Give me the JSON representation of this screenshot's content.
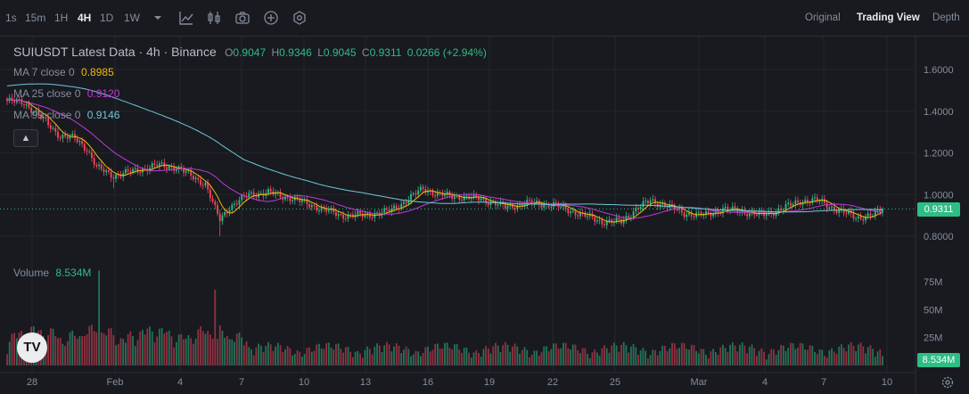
{
  "toolbar": {
    "timeframes": [
      "1s",
      "15m",
      "1H",
      "4H",
      "1D",
      "1W"
    ],
    "active_timeframe": "4H",
    "views": [
      "Original",
      "Trading View",
      "Depth"
    ],
    "active_view": "Trading View"
  },
  "legend": {
    "title": "SUIUSDT Latest Data · 4h · Binance",
    "o_label": "O",
    "o": "0.9047",
    "h_label": "H",
    "h": "0.9346",
    "l_label": "L",
    "l": "0.9045",
    "c_label": "C",
    "c": "0.9311",
    "change": "0.0266 (+2.94%)",
    "ma7_label": "MA 7 close 0",
    "ma7": "0.8985",
    "ma25_label": "MA 25 close 0",
    "ma25": "0.9120",
    "ma99_label": "MA 99 close 0",
    "ma99": "0.9146",
    "volume_label": "Volume",
    "volume": "8.534M"
  },
  "price_axis": {
    "ticks": [
      "1.6000",
      "1.4000",
      "1.2000",
      "1.0000",
      "0.8000"
    ],
    "current_price": "0.9311"
  },
  "volume_axis": {
    "ticks": [
      "75M",
      "50M",
      "25M"
    ],
    "current_volume": "8.534M"
  },
  "time_axis": {
    "labels": [
      "28",
      "Feb",
      "4",
      "7",
      "10",
      "13",
      "16",
      "19",
      "22",
      "25",
      "Mar",
      "4",
      "7",
      "10"
    ]
  },
  "colors": {
    "background": "#181a20",
    "up": "#2ebd85",
    "down": "#f6465d",
    "ma7": "#f0b90b",
    "ma25": "#c238d8",
    "ma99": "#6fc8d8",
    "text": "#848e9c"
  },
  "chart_data": {
    "type": "candlestick",
    "symbol": "SUIUSDT",
    "interval": "4h",
    "x": [
      "Jan 28",
      "Feb 1",
      "Feb 4",
      "Feb 7",
      "Feb 10",
      "Feb 13",
      "Feb 16",
      "Feb 19",
      "Feb 22",
      "Feb 25",
      "Mar 1",
      "Mar 4",
      "Mar 7",
      "Mar 10"
    ],
    "close_path": [
      [
        0,
        1.45
      ],
      [
        7,
        1.44
      ],
      [
        15,
        1.36
      ],
      [
        22,
        1.28
      ],
      [
        28,
        1.27
      ],
      [
        33,
        1.22
      ],
      [
        37,
        1.13
      ],
      [
        44,
        1.09
      ],
      [
        55,
        1.12
      ],
      [
        62,
        1.14
      ],
      [
        70,
        1.13
      ],
      [
        76,
        1.09
      ],
      [
        82,
        1.05
      ],
      [
        86,
        0.93
      ],
      [
        88,
        0.88
      ],
      [
        92,
        0.94
      ],
      [
        100,
        1.0
      ],
      [
        108,
        1.01
      ],
      [
        118,
        0.98
      ],
      [
        128,
        0.94
      ],
      [
        138,
        0.9
      ],
      [
        148,
        0.9
      ],
      [
        158,
        0.92
      ],
      [
        165,
        0.97
      ],
      [
        172,
        1.03
      ],
      [
        178,
        1.0
      ],
      [
        186,
        0.99
      ],
      [
        196,
        0.98
      ],
      [
        206,
        0.94
      ],
      [
        216,
        0.96
      ],
      [
        226,
        0.95
      ],
      [
        236,
        0.91
      ],
      [
        246,
        0.87
      ],
      [
        254,
        0.87
      ],
      [
        260,
        0.93
      ],
      [
        266,
        0.97
      ],
      [
        272,
        0.95
      ],
      [
        280,
        0.91
      ],
      [
        288,
        0.9
      ],
      [
        296,
        0.93
      ],
      [
        304,
        0.92
      ],
      [
        312,
        0.9
      ],
      [
        320,
        0.93
      ],
      [
        328,
        0.97
      ],
      [
        336,
        0.97
      ],
      [
        344,
        0.92
      ],
      [
        352,
        0.89
      ],
      [
        358,
        0.9
      ],
      [
        362,
        0.93
      ]
    ],
    "volume_peaks_M": [
      [
        38,
        85
      ],
      [
        86,
        68
      ]
    ],
    "ylim": [
      0.73,
      1.72
    ],
    "volume_ylim": [
      0,
      100
    ]
  }
}
